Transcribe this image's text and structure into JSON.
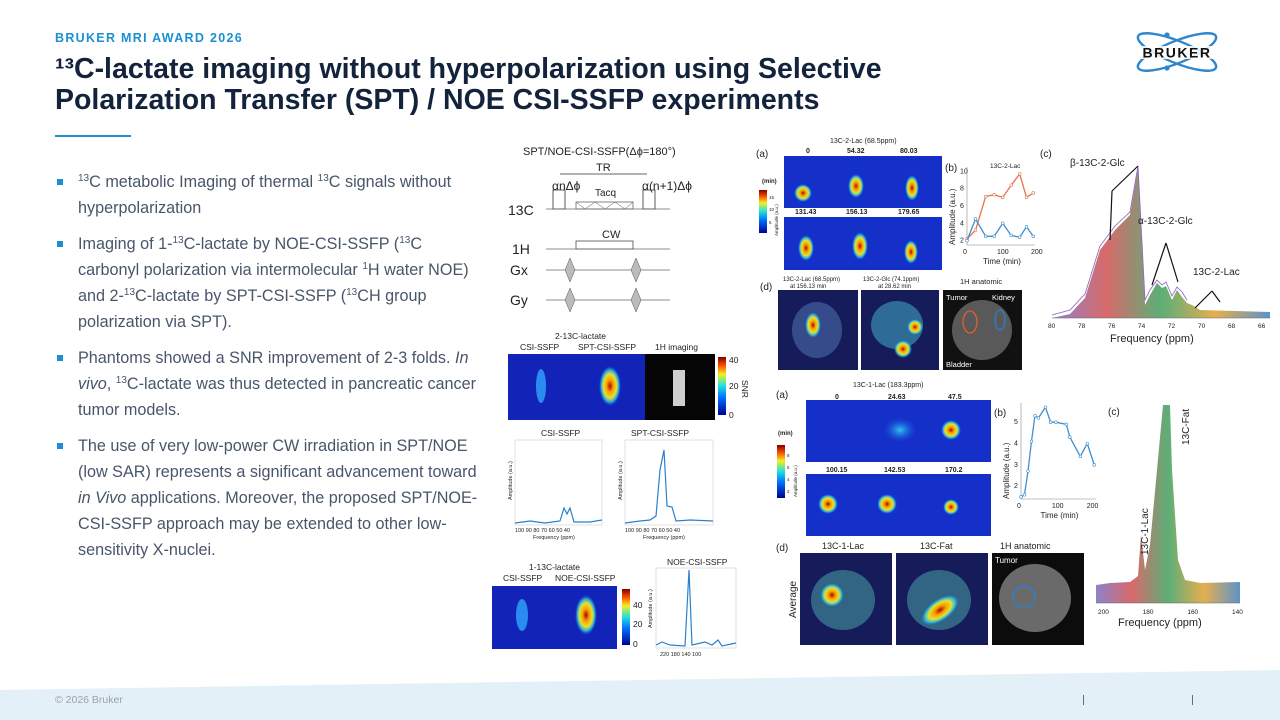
{
  "header": {
    "kicker": "BRUKER MRI AWARD 2026",
    "title_line1": "¹³C-lactate imaging without hyperpolarization using Selective",
    "title_line2": "Polarization Transfer (SPT) / NOE CSI-SSFP experiments",
    "logo_text": "BRUKER"
  },
  "colors": {
    "accent": "#1b8fd2",
    "title": "#14233c",
    "body": "#48566a",
    "footer_band": "#e3f0f8"
  },
  "bullets": [
    [
      {
        "sup": "13"
      },
      {
        "t": "C metabolic Imaging of thermal "
      },
      {
        "sup": "13"
      },
      {
        "t": "C signals without hyperpolarization"
      }
    ],
    [
      {
        "t": "Imaging of 1-"
      },
      {
        "sup": "13"
      },
      {
        "t": "C-lactate by NOE-CSI-SSFP ("
      },
      {
        "sup": "13"
      },
      {
        "t": "C carbonyl polarization via intermolecular "
      },
      {
        "sup": "1"
      },
      {
        "t": "H water NOE) and  2-"
      },
      {
        "sup": "13"
      },
      {
        "t": "C-lactate by SPT-CSI-SSFP ("
      },
      {
        "sup": "13"
      },
      {
        "t": "CH group polarization via SPT)."
      }
    ],
    [
      {
        "t": "Phantoms showed a SNR improvement of 2-3 folds. "
      },
      {
        "i": "In vivo"
      },
      {
        "t": ", "
      },
      {
        "sup": "13"
      },
      {
        "t": "C-lactate was thus detected in pancreatic cancer tumor models."
      }
    ],
    [
      {
        "t": "The use of very low-power CW irradiation in SPT/NOE (low SAR) represents a significant advancement toward "
      },
      {
        "i": "in Vivo"
      },
      {
        "t": " applications. Moreover, the proposed SPT/NOE-CSI-SSFP approach may be extended to other low-sensitivity X-nuclei."
      }
    ]
  ],
  "pulse_sequence": {
    "title": "SPT/NOE-CSI-SSFP(Δϕ=180°)",
    "tr": "TR",
    "alpha1": "αnΔϕ",
    "alpha2": "α(n+1)Δϕ",
    "tacq": "Tacq",
    "cw": "CW",
    "channels": [
      "13C",
      "1H",
      "Gx",
      "Gy"
    ],
    "dots": "···"
  },
  "phantom_2lac": {
    "title": "2-13C-lactate",
    "labels": [
      "CSI-SSFP",
      "SPT-CSI-SSFP",
      "1H imaging"
    ],
    "cbar_ticks": [
      "40",
      "20",
      "0"
    ],
    "cbar_label": "SNR",
    "plots": [
      {
        "title": "CSI-SSFP",
        "xlabel": "Frequency (ppm)",
        "ylabel": "Amplitude (a.u.)",
        "xticks": "100 90 80 70 60 50 40"
      },
      {
        "title": "SPT-CSI-SSFP",
        "xlabel": "Frequency (ppm)",
        "ylabel": "Amplitude (a.u.)",
        "xticks": "100 90 80 70 60 50 40"
      }
    ]
  },
  "phantom_1lac": {
    "title": "1-13C-lactate",
    "labels": [
      "CSI-SSFP",
      "NOE-CSI-SSFP"
    ],
    "cbar_ticks": [
      "40",
      "20",
      "0"
    ],
    "plot": {
      "title": "NOE-CSI-SSFP",
      "xlabel": "Frequency (ppm)",
      "ylabel": "Amplitude (a.u.)",
      "xticks": "220 180 140 100"
    }
  },
  "invivo_2lac": {
    "panel_a": {
      "label": "(a)",
      "title": "13C-2-Lac (68.5ppm)",
      "times_row1": [
        "0",
        "54.32",
        "80.03"
      ],
      "times_row2": [
        "131.43",
        "156.13",
        "179.65"
      ],
      "cbar_unit": "(min)",
      "cbar_label": "Amplitude (a.u.)",
      "cbar_ticks": [
        "15",
        "10",
        "5"
      ]
    },
    "panel_b": {
      "label": "(b)",
      "title": "13C-2-Lac",
      "xlabel": "Time (min)",
      "ylabel": "Amplitude (a.u.)",
      "xticks": [
        "0",
        "100",
        "200"
      ],
      "yticks": [
        "2",
        "4",
        "6",
        "8",
        "10"
      ],
      "series": [
        {
          "color": "#e8734a",
          "x": [
            0,
            25,
            55,
            80,
            105,
            130,
            155,
            175,
            195
          ],
          "y": [
            2.2,
            3.2,
            7.1,
            7.3,
            7.0,
            8.4,
            9.7,
            7.0,
            7.5
          ]
        },
        {
          "color": "#3f8fd0",
          "x": [
            0,
            25,
            55,
            80,
            105,
            130,
            155,
            175,
            195
          ],
          "y": [
            2.0,
            4.5,
            2.5,
            2.5,
            4.0,
            2.6,
            2.4,
            3.6,
            2.5
          ]
        }
      ]
    },
    "panel_c": {
      "label": "(c)",
      "peaks": [
        "β-13C-2-Glc",
        "α-13C-2-Glc",
        "13C-2-Lac"
      ],
      "xlabel": "Frequency (ppm)",
      "xticks": [
        "80",
        "78",
        "76",
        "74",
        "72",
        "70",
        "68",
        "66"
      ]
    },
    "panel_d": {
      "label": "(d)",
      "captions": [
        "13C-2-Lac (68.5ppm)",
        "at 156.13 min",
        "13C-2-Glc (74.1ppm)",
        "at 28.62 min",
        "1H anatomic"
      ],
      "anat_labels": [
        "Tumor",
        "Kidney",
        "Bladder"
      ]
    }
  },
  "invivo_1lac": {
    "panel_a": {
      "label": "(a)",
      "title": "13C-1-Lac (183.3ppm)",
      "times_row1": [
        "0",
        "24.63",
        "47.5"
      ],
      "times_row2": [
        "100.15",
        "142.53",
        "170.2"
      ],
      "cbar_unit": "(min)",
      "cbar_label": "Amplitude (a.u.)",
      "cbar_ticks": [
        "8",
        "6",
        "4",
        "2"
      ]
    },
    "panel_b": {
      "label": "(b)",
      "xlabel": "Time (min)",
      "ylabel": "Amplitude (a.u.)",
      "xticks": [
        "0",
        "100",
        "200"
      ],
      "yticks": [
        "2",
        "3",
        "4",
        "5"
      ],
      "series": [
        {
          "color": "#3f8fd0",
          "x": [
            0,
            10,
            20,
            30,
            40,
            50,
            70,
            85,
            100,
            130,
            140,
            170,
            190,
            210
          ],
          "y": [
            1.5,
            1.6,
            2.7,
            4.1,
            5.3,
            5.2,
            5.7,
            5.0,
            5.0,
            4.9,
            4.3,
            3.4,
            4.0,
            3.0
          ]
        }
      ]
    },
    "panel_c": {
      "label": "(c)",
      "peaks": [
        "13C-1-Lac",
        "13C-Fat"
      ],
      "xlabel": "Frequency (ppm)",
      "xticks": [
        "200",
        "180",
        "160",
        "140"
      ]
    },
    "panel_d": {
      "label": "(d)",
      "row_label": "Average",
      "captions": [
        "13C-1-Lac",
        "13C-Fat",
        "1H anatomic"
      ],
      "anat_labels": [
        "Tumor"
      ]
    }
  },
  "footer": {
    "copyright": "© 2026 Bruker"
  }
}
